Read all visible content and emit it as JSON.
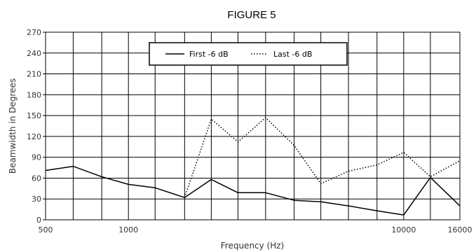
{
  "chart_data": {
    "type": "line",
    "title": "FIGURE 5",
    "xlabel": "Frequency (Hz)",
    "ylabel": "Beamwidth in Degrees",
    "x_scale": "log",
    "xlim": [
      500,
      16000
    ],
    "ylim": [
      0,
      270
    ],
    "x_ticks": [
      500,
      1000,
      10000,
      16000
    ],
    "x_tick_labels": [
      "500",
      "1000",
      "10000",
      "16000"
    ],
    "x_gridlines": [
      500,
      630,
      800,
      1000,
      1250,
      1600,
      2000,
      2500,
      3150,
      4000,
      5000,
      6300,
      8000,
      10000,
      12500,
      16000
    ],
    "y_ticks": [
      0,
      30,
      60,
      90,
      120,
      150,
      180,
      210,
      240,
      270
    ],
    "grid": true,
    "legend_position": "top-center",
    "series": [
      {
        "name": "First -6 dB",
        "style": "solid",
        "x": [
          500,
          630,
          800,
          1000,
          1250,
          1600,
          2000,
          2500,
          3150,
          4000,
          5000,
          6300,
          8000,
          10000,
          12500,
          16000
        ],
        "y": [
          71,
          77,
          62,
          51,
          46,
          32,
          58,
          39,
          39,
          28,
          26,
          20,
          13,
          7,
          61,
          20
        ]
      },
      {
        "name": "Last -6 dB",
        "style": "dotted",
        "x": [
          1600,
          2000,
          2500,
          3150,
          4000,
          5000,
          6300,
          8000,
          10000,
          12500,
          16000
        ],
        "y": [
          32,
          145,
          112,
          147,
          107,
          52,
          70,
          79,
          97,
          62,
          85
        ]
      }
    ]
  }
}
